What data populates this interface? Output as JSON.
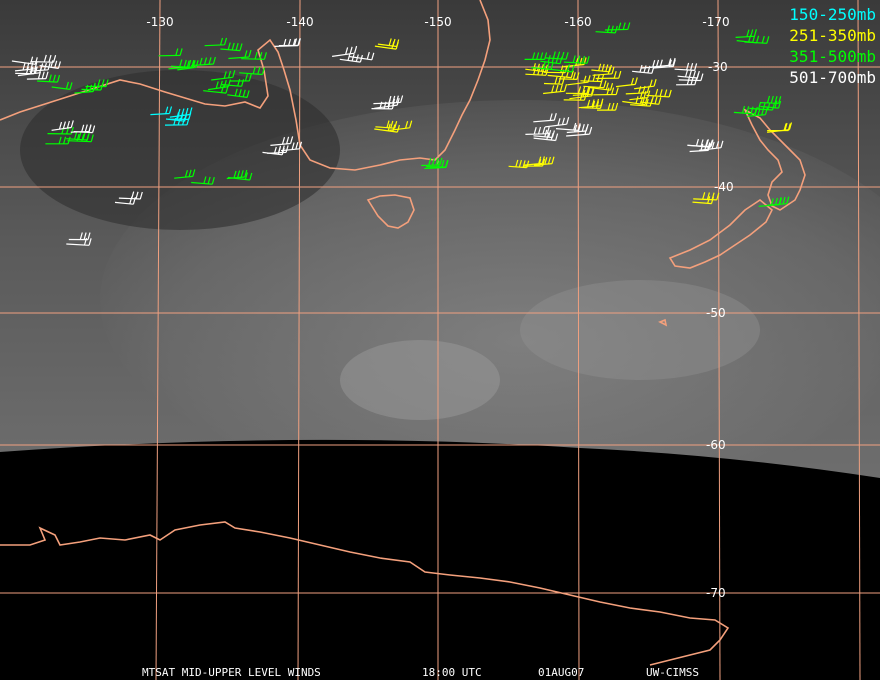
{
  "legend": [
    {
      "label": "150-250mb",
      "color": "#00ffff"
    },
    {
      "label": "251-350mb",
      "color": "#ffff00"
    },
    {
      "label": "351-500mb",
      "color": "#00ff00"
    },
    {
      "label": "501-700mb",
      "color": "#ffffff"
    }
  ],
  "longitude_labels": [
    "-130",
    "-140",
    "-150",
    "-160",
    "-170"
  ],
  "latitude_labels": [
    "-30",
    "-40",
    "-50",
    "-60",
    "-70"
  ],
  "footer": {
    "product": "MTSAT MID-UPPER LEVEL WINDS",
    "time": "18:00 UTC",
    "date": "01AUG07",
    "source": "UW-CIMSS"
  }
}
